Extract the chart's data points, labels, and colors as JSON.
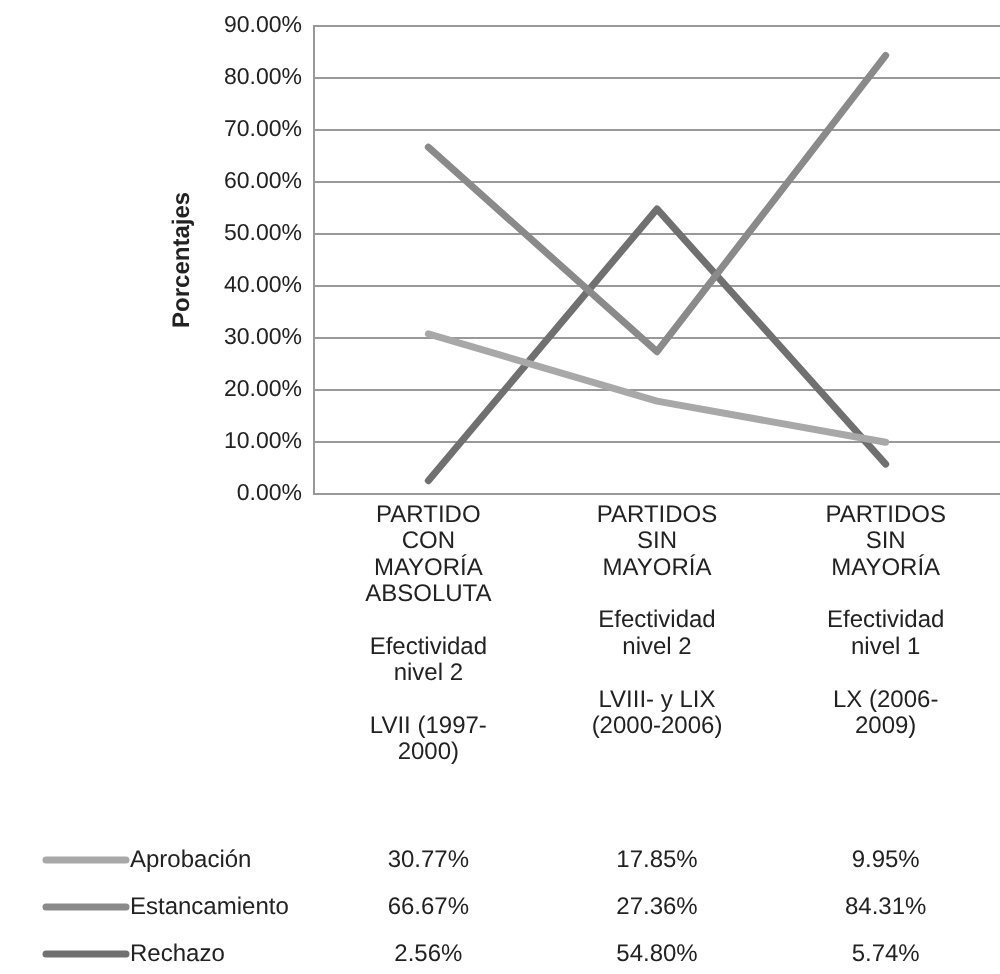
{
  "chart_data": {
    "type": "line",
    "ylabel": "Porcentajes",
    "categories": [
      "PARTIDO\nCON\nMAYORÍA\nABSOLUTA\n\nEfectividad\nnivel 2\n\nLVII (1997-\n2000)",
      "PARTIDOS\nSIN\nMAYORÍA\n\nEfectividad\nnivel 2\n\nLVIII- y LIX\n(2000-2006)",
      "PARTIDOS\nSIN\nMAYORÍA\n\nEfectividad\nnivel 1\n\nLX (2006-\n2009)"
    ],
    "series": [
      {
        "name": "Aprobación",
        "color": "#a8a8a8",
        "values": [
          30.77,
          17.85,
          9.95
        ],
        "value_labels": [
          "30.77%",
          "17.85%",
          "9.95%"
        ]
      },
      {
        "name": "Estancamiento",
        "color": "#8a8a8a",
        "values": [
          66.67,
          27.36,
          84.31
        ],
        "value_labels": [
          "66.67%",
          "27.36%",
          "84.31%"
        ]
      },
      {
        "name": "Rechazo",
        "color": "#707070",
        "values": [
          2.56,
          54.8,
          5.74
        ],
        "value_labels": [
          "2.56%",
          "54.80%",
          "5.74%"
        ]
      }
    ],
    "ylim": [
      0,
      90
    ],
    "yticks": [
      {
        "value": 0,
        "label": "0.00%"
      },
      {
        "value": 10,
        "label": "10.00%"
      },
      {
        "value": 20,
        "label": "20.00%"
      },
      {
        "value": 30,
        "label": "30.00%"
      },
      {
        "value": 40,
        "label": "40.00%"
      },
      {
        "value": 50,
        "label": "50.00%"
      },
      {
        "value": 60,
        "label": "60.00%"
      },
      {
        "value": 70,
        "label": "70.00%"
      },
      {
        "value": 80,
        "label": "80.00%"
      },
      {
        "value": 90,
        "label": "90.00%"
      }
    ],
    "grid": "y",
    "legend": "bottom left",
    "marker": "none",
    "line_style": "solid"
  }
}
